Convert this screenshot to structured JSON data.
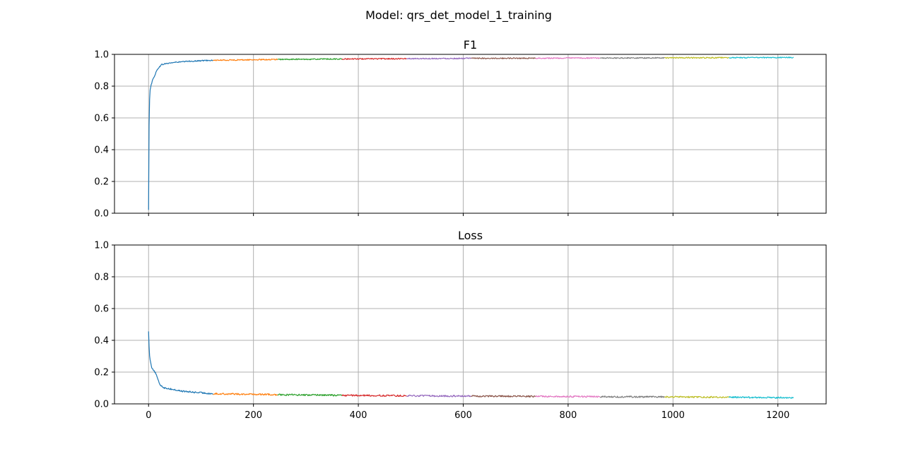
{
  "suptitle": "Model: qrs_det_model_1_training",
  "chart_data": [
    {
      "type": "line",
      "title": "F1",
      "xlim": [
        -65,
        1292
      ],
      "ylim": [
        0.0,
        1.0
      ],
      "xticks": [
        0,
        200,
        400,
        600,
        800,
        1000,
        1200
      ],
      "yticks": [
        "0.0",
        "0.2",
        "0.4",
        "0.6",
        "0.8",
        "1.0"
      ],
      "show_xticklabels": false,
      "grid": true,
      "series": [
        {
          "color": "#1f77b4",
          "x": [
            0,
            1,
            2,
            3,
            5,
            8,
            12,
            16,
            20,
            25,
            30,
            40,
            50,
            60,
            70,
            80,
            90,
            100,
            110,
            123
          ],
          "y": [
            0.02,
            0.55,
            0.72,
            0.78,
            0.81,
            0.84,
            0.87,
            0.9,
            0.92,
            0.935,
            0.94,
            0.945,
            0.95,
            0.952,
            0.955,
            0.957,
            0.958,
            0.96,
            0.962,
            0.963
          ]
        },
        {
          "color": "#ff7f0e",
          "x": [
            123,
            246
          ],
          "y": [
            0.963,
            0.968
          ]
        },
        {
          "color": "#2ca02c",
          "x": [
            246,
            369
          ],
          "y": [
            0.968,
            0.971
          ]
        },
        {
          "color": "#d62728",
          "x": [
            369,
            492
          ],
          "y": [
            0.971,
            0.973
          ]
        },
        {
          "color": "#9467bd",
          "x": [
            492,
            615
          ],
          "y": [
            0.973,
            0.975
          ]
        },
        {
          "color": "#8c564b",
          "x": [
            615,
            738
          ],
          "y": [
            0.975,
            0.976
          ]
        },
        {
          "color": "#e377c2",
          "x": [
            738,
            861
          ],
          "y": [
            0.976,
            0.977
          ]
        },
        {
          "color": "#7f7f7f",
          "x": [
            861,
            984
          ],
          "y": [
            0.977,
            0.978
          ]
        },
        {
          "color": "#bcbd22",
          "x": [
            984,
            1107
          ],
          "y": [
            0.978,
            0.979
          ]
        },
        {
          "color": "#17becf",
          "x": [
            1107,
            1230
          ],
          "y": [
            0.979,
            0.98
          ]
        }
      ]
    },
    {
      "type": "line",
      "title": "Loss",
      "xlim": [
        -65,
        1292
      ],
      "ylim": [
        0.0,
        1.0
      ],
      "xticks": [
        0,
        200,
        400,
        600,
        800,
        1000,
        1200
      ],
      "xticklabels": [
        "0",
        "200",
        "400",
        "600",
        "800",
        "1000",
        "1200"
      ],
      "yticks": [
        "0.0",
        "0.2",
        "0.4",
        "0.6",
        "0.8",
        "1.0"
      ],
      "show_xticklabels": true,
      "grid": true,
      "series": [
        {
          "color": "#1f77b4",
          "x": [
            0,
            1,
            2,
            4,
            6,
            10,
            14,
            18,
            22,
            26,
            30,
            40,
            50,
            60,
            70,
            80,
            90,
            100,
            110,
            123
          ],
          "y": [
            0.46,
            0.36,
            0.3,
            0.26,
            0.23,
            0.21,
            0.19,
            0.15,
            0.12,
            0.11,
            0.1,
            0.095,
            0.088,
            0.082,
            0.078,
            0.075,
            0.072,
            0.07,
            0.067,
            0.064
          ]
        },
        {
          "color": "#ff7f0e",
          "x": [
            123,
            246
          ],
          "y": [
            0.064,
            0.058
          ]
        },
        {
          "color": "#2ca02c",
          "x": [
            246,
            369
          ],
          "y": [
            0.058,
            0.054
          ]
        },
        {
          "color": "#d62728",
          "x": [
            369,
            492
          ],
          "y": [
            0.054,
            0.051
          ]
        },
        {
          "color": "#9467bd",
          "x": [
            492,
            615
          ],
          "y": [
            0.051,
            0.049
          ]
        },
        {
          "color": "#8c564b",
          "x": [
            615,
            738
          ],
          "y": [
            0.049,
            0.047
          ]
        },
        {
          "color": "#e377c2",
          "x": [
            738,
            861
          ],
          "y": [
            0.047,
            0.045
          ]
        },
        {
          "color": "#7f7f7f",
          "x": [
            861,
            984
          ],
          "y": [
            0.045,
            0.044
          ]
        },
        {
          "color": "#bcbd22",
          "x": [
            984,
            1107
          ],
          "y": [
            0.044,
            0.042
          ]
        },
        {
          "color": "#17becf",
          "x": [
            1107,
            1230
          ],
          "y": [
            0.042,
            0.038
          ]
        }
      ]
    }
  ]
}
